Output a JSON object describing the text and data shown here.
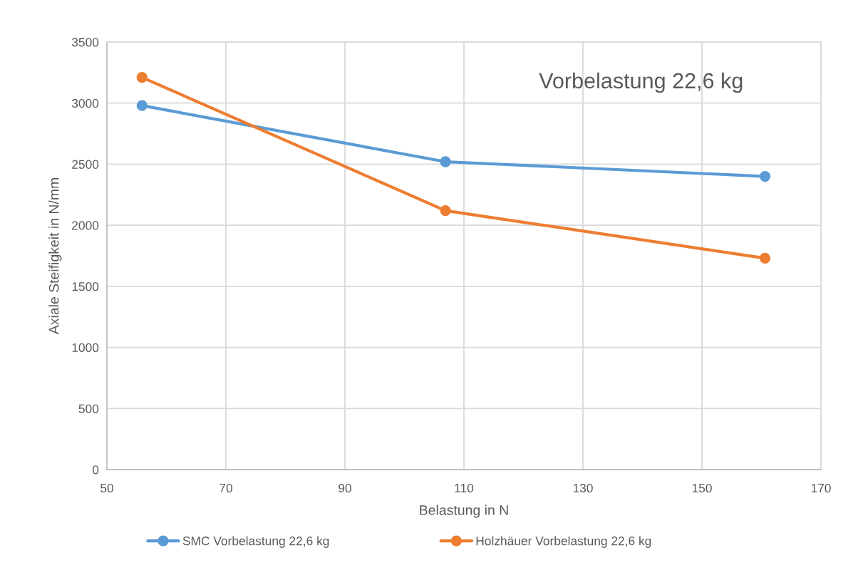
{
  "chart_data": {
    "type": "line",
    "annotations": [
      "Vorbelastung 22,6 kg"
    ],
    "xlabel": "Belastung in N",
    "ylabel": "Axiale Steifigkeit in N/mm",
    "x": [
      55.9,
      106.9,
      160.6
    ],
    "series": [
      {
        "name": "SMC Vorbelastung 22,6 kg",
        "color": "#5b9bd5",
        "values": [
          2980,
          2520,
          2400
        ]
      },
      {
        "name": "Holzhäuer Vorbelastung 22,6 kg",
        "color": "#ed7d31",
        "values": [
          3210,
          2120,
          1730
        ]
      }
    ],
    "xlim": [
      50,
      170
    ],
    "xticks": [
      50,
      70,
      90,
      110,
      130,
      150,
      170
    ],
    "ylim": [
      0,
      3500
    ],
    "yticks": [
      0,
      500,
      1000,
      1500,
      2000,
      2500,
      3000,
      3500
    ],
    "grid": true,
    "legend": "bottom",
    "marker": "circle",
    "line_style": "solid"
  }
}
